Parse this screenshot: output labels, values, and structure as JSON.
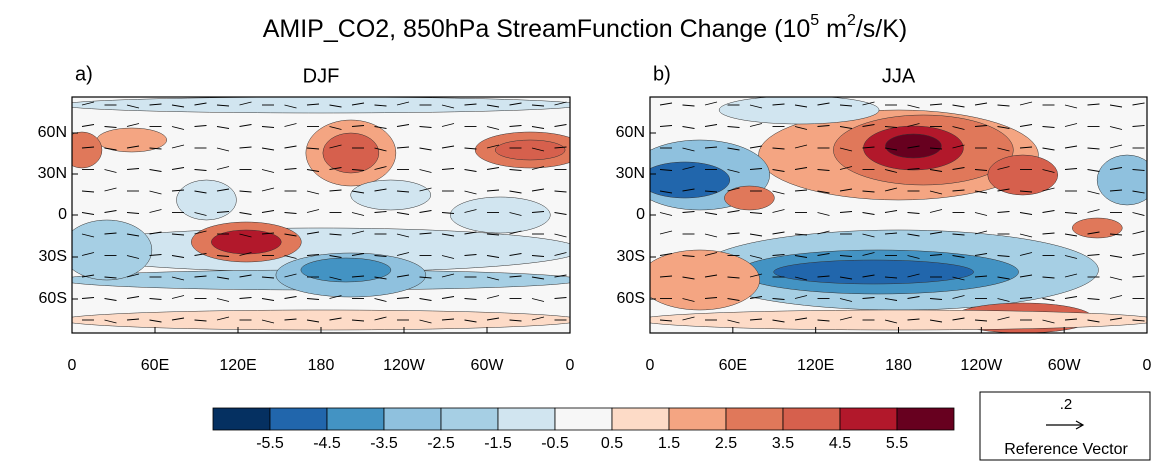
{
  "title": {
    "main": "AMIP_CO2, 850hPa StreamFunction Change (10",
    "exp1": "5",
    "unit": " m",
    "exp2": "2",
    "tail": "/s/K)"
  },
  "panels": [
    {
      "label": "a)",
      "season": "DJF"
    },
    {
      "label": "b)",
      "season": "JJA"
    }
  ],
  "lat_ticks": [
    "60N",
    "30N",
    "0",
    "30S",
    "60S"
  ],
  "lon_ticks": [
    "0",
    "60E",
    "120E",
    "180",
    "120W",
    "60W",
    "0"
  ],
  "colorbar": {
    "colors": [
      "#053061",
      "#2166ac",
      "#4393c3",
      "#8fc1de",
      "#a6cfe4",
      "#d1e5f0",
      "#f7f7f7",
      "#fddbc7",
      "#f4a582",
      "#e0785a",
      "#d6604d",
      "#b2182b",
      "#67001f"
    ],
    "labels": [
      "-5.5",
      "-4.5",
      "-3.5",
      "-2.5",
      "-1.5",
      "-0.5",
      "0.5",
      "1.5",
      "2.5",
      "3.5",
      "4.5",
      "5.5"
    ]
  },
  "reference_vector": {
    "magnitude": ".2",
    "label": "Reference Vector"
  }
}
